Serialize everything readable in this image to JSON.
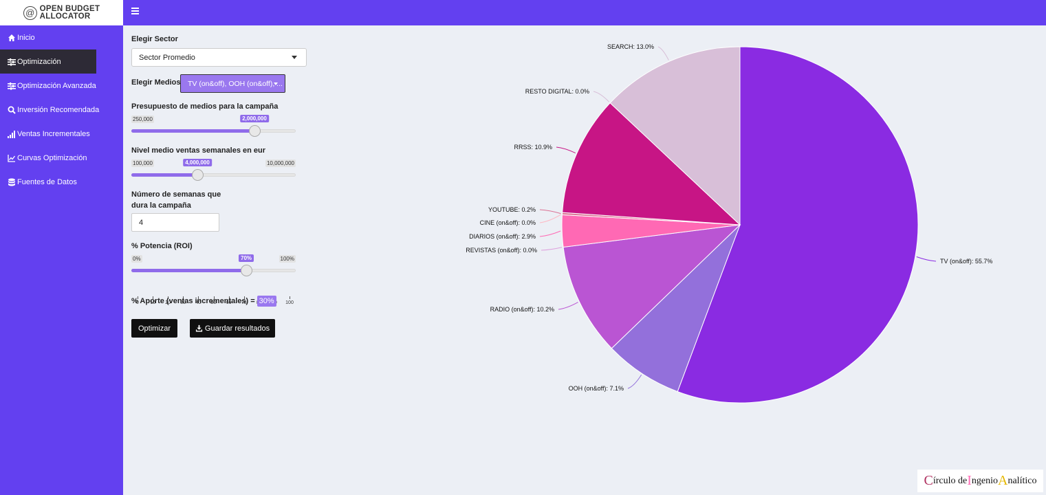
{
  "logo": {
    "line1": "OPEN BUDGET",
    "line2": "ALLOCATOR",
    "mark": "@"
  },
  "sidebar": {
    "items": [
      {
        "label": "Inicio",
        "icon": "home-icon"
      },
      {
        "label": "Optimización",
        "icon": "sliders-icon",
        "active": true
      },
      {
        "label": "Optimización Avanzada",
        "icon": "sliders-icon"
      },
      {
        "label": "Inversión Recomendada",
        "icon": "search-dollar-icon"
      },
      {
        "label": "Ventas Incrementales",
        "icon": "signal-bars-icon"
      },
      {
        "label": "Curvas Optimización",
        "icon": "line-chart-icon"
      },
      {
        "label": "Fuentes de Datos",
        "icon": "database-icon"
      }
    ]
  },
  "form": {
    "sector_label": "Elegir Sector",
    "sector_value": "Sector Promedio",
    "medios_label": "Elegir Medios:",
    "medios_value": "TV (on&off), OOH (on&off), ...",
    "presupuesto": {
      "label": "Presupuesto de medios para la campaña",
      "min": "250,000",
      "value": "2,000,000",
      "fraction": 0.75
    },
    "ventas": {
      "label": "Nivel medio ventas semanales en eur",
      "min": "100,000",
      "max": "10,000,000",
      "value": "4,000,000",
      "fraction": 0.4
    },
    "semanas": {
      "label_line1": "Número de semanas que",
      "label_line2": "dura la campaña",
      "value": "4"
    },
    "potencia": {
      "label": "% Potencia (ROI)",
      "min": "0%",
      "max": "100%",
      "value": "70%",
      "fraction": 0.7,
      "ticks": [
        "0",
        "10",
        "20",
        "30",
        "40",
        "50",
        "60",
        "70",
        "80",
        "90",
        "100"
      ]
    },
    "aporte_label": "% Aporte (ventas incrementales) =",
    "aporte_value": "30%",
    "optimizar_label": "Optimizar",
    "guardar_label": "Guardar resultados"
  },
  "chart_data": {
    "type": "pie",
    "title": "",
    "slices": [
      {
        "label": "TV (on&off)",
        "value": 55.7,
        "color": "#8a2be2"
      },
      {
        "label": "OOH (on&off)",
        "value": 7.1,
        "color": "#9370db"
      },
      {
        "label": "RADIO (on&off)",
        "value": 10.2,
        "color": "#ba55d3"
      },
      {
        "label": "REVISTAS (on&off)",
        "value": 0.0,
        "color": "#dda0dd"
      },
      {
        "label": "DIARIOS (on&off)",
        "value": 2.9,
        "color": "#ff69b4"
      },
      {
        "label": "CINE (on&off)",
        "value": 0.0,
        "color": "#ffb6c1"
      },
      {
        "label": "YOUTUBE",
        "value": 0.2,
        "color": "#db7093"
      },
      {
        "label": "RRSS",
        "value": 10.9,
        "color": "#c71585"
      },
      {
        "label": "RESTO DIGITAL",
        "value": 0.0,
        "color": "#d8bfd8"
      },
      {
        "label": "SEARCH",
        "value": 13.0,
        "color": "#d8bfd8"
      }
    ],
    "legend": "none"
  },
  "footer": {
    "c": "C",
    "w1": "írculo de ",
    "i": "I",
    "w2": "ngenio ",
    "a": "A",
    "w3": "nalítico"
  }
}
